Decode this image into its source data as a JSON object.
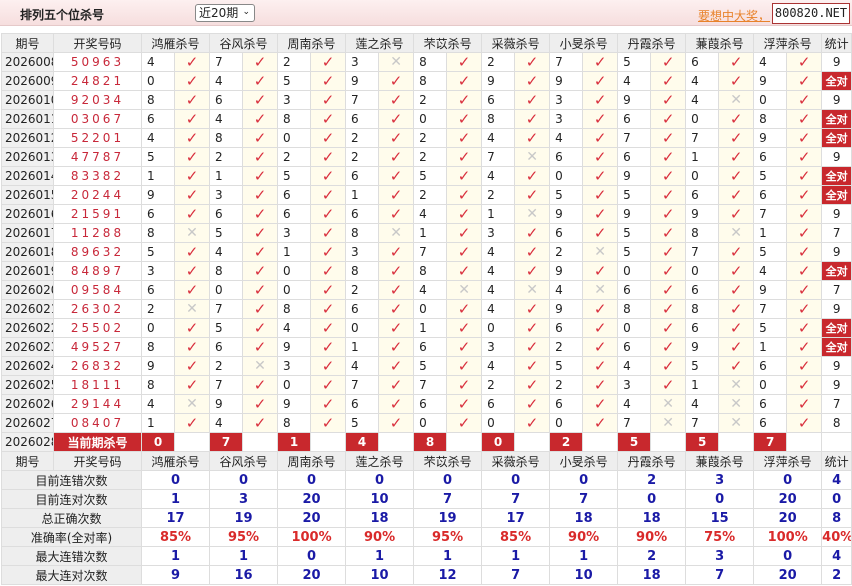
{
  "header": {
    "title": "排列五个位杀号",
    "period_select": "近20期",
    "ad_link": "要想中大奖，",
    "site_box": "800820.NET"
  },
  "colors": {
    "accent_red": "#c8282d",
    "check": "#d9303e",
    "cross": "#c8c8c8",
    "stat_blue": "#1a1aa6"
  },
  "columns": {
    "issue": "期号",
    "draw": "开奖号码",
    "experts": [
      "鸿雁杀号",
      "谷风杀号",
      "周南杀号",
      "莲之杀号",
      "芣苡杀号",
      "采薇杀号",
      "小旻杀号",
      "丹霞杀号",
      "蒹葭杀号",
      "浮萍杀号"
    ],
    "stat": "统计"
  },
  "full_label": "全对",
  "rows": [
    {
      "issue": "2026008",
      "draw": "50963",
      "picks": [
        [
          4,
          true
        ],
        [
          7,
          true
        ],
        [
          2,
          true
        ],
        [
          3,
          false
        ],
        [
          8,
          true
        ],
        [
          2,
          true
        ],
        [
          7,
          true
        ],
        [
          5,
          true
        ],
        [
          6,
          true
        ],
        [
          4,
          true
        ]
      ],
      "stat": "9"
    },
    {
      "issue": "2026009",
      "draw": "24821",
      "picks": [
        [
          0,
          true
        ],
        [
          4,
          true
        ],
        [
          5,
          true
        ],
        [
          9,
          true
        ],
        [
          8,
          true
        ],
        [
          9,
          true
        ],
        [
          9,
          true
        ],
        [
          4,
          true
        ],
        [
          4,
          true
        ],
        [
          9,
          true
        ]
      ],
      "stat": "全对"
    },
    {
      "issue": "2026010",
      "draw": "92034",
      "picks": [
        [
          8,
          true
        ],
        [
          6,
          true
        ],
        [
          3,
          true
        ],
        [
          7,
          true
        ],
        [
          2,
          true
        ],
        [
          6,
          true
        ],
        [
          3,
          true
        ],
        [
          9,
          true
        ],
        [
          4,
          false
        ],
        [
          0,
          true
        ]
      ],
      "stat": "9"
    },
    {
      "issue": "2026011",
      "draw": "03067",
      "picks": [
        [
          6,
          true
        ],
        [
          4,
          true
        ],
        [
          8,
          true
        ],
        [
          6,
          true
        ],
        [
          0,
          true
        ],
        [
          8,
          true
        ],
        [
          3,
          true
        ],
        [
          6,
          true
        ],
        [
          0,
          true
        ],
        [
          8,
          true
        ]
      ],
      "stat": "全对"
    },
    {
      "issue": "2026012",
      "draw": "52201",
      "picks": [
        [
          4,
          true
        ],
        [
          8,
          true
        ],
        [
          0,
          true
        ],
        [
          2,
          true
        ],
        [
          2,
          true
        ],
        [
          4,
          true
        ],
        [
          4,
          true
        ],
        [
          7,
          true
        ],
        [
          7,
          true
        ],
        [
          9,
          true
        ]
      ],
      "stat": "全对"
    },
    {
      "issue": "2026013",
      "draw": "47787",
      "picks": [
        [
          5,
          true
        ],
        [
          2,
          true
        ],
        [
          2,
          true
        ],
        [
          2,
          true
        ],
        [
          2,
          true
        ],
        [
          7,
          false
        ],
        [
          6,
          true
        ],
        [
          6,
          true
        ],
        [
          1,
          true
        ],
        [
          6,
          true
        ]
      ],
      "stat": "9"
    },
    {
      "issue": "2026014",
      "draw": "83382",
      "picks": [
        [
          1,
          true
        ],
        [
          1,
          true
        ],
        [
          5,
          true
        ],
        [
          6,
          true
        ],
        [
          5,
          true
        ],
        [
          4,
          true
        ],
        [
          0,
          true
        ],
        [
          9,
          true
        ],
        [
          0,
          true
        ],
        [
          5,
          true
        ]
      ],
      "stat": "全对"
    },
    {
      "issue": "2026015",
      "draw": "20244",
      "picks": [
        [
          9,
          true
        ],
        [
          3,
          true
        ],
        [
          6,
          true
        ],
        [
          1,
          true
        ],
        [
          2,
          true
        ],
        [
          2,
          true
        ],
        [
          5,
          true
        ],
        [
          5,
          true
        ],
        [
          6,
          true
        ],
        [
          6,
          true
        ]
      ],
      "stat": "全对"
    },
    {
      "issue": "2026016",
      "draw": "21591",
      "picks": [
        [
          6,
          true
        ],
        [
          6,
          true
        ],
        [
          6,
          true
        ],
        [
          6,
          true
        ],
        [
          4,
          true
        ],
        [
          1,
          false
        ],
        [
          9,
          true
        ],
        [
          9,
          true
        ],
        [
          9,
          true
        ],
        [
          7,
          true
        ]
      ],
      "stat": "9"
    },
    {
      "issue": "2026017",
      "draw": "11288",
      "picks": [
        [
          8,
          false
        ],
        [
          5,
          true
        ],
        [
          3,
          true
        ],
        [
          8,
          false
        ],
        [
          1,
          true
        ],
        [
          3,
          true
        ],
        [
          6,
          true
        ],
        [
          5,
          true
        ],
        [
          8,
          false
        ],
        [
          1,
          true
        ]
      ],
      "stat": "7"
    },
    {
      "issue": "2026018",
      "draw": "89632",
      "picks": [
        [
          5,
          true
        ],
        [
          4,
          true
        ],
        [
          1,
          true
        ],
        [
          3,
          true
        ],
        [
          7,
          true
        ],
        [
          4,
          true
        ],
        [
          2,
          false
        ],
        [
          5,
          true
        ],
        [
          7,
          true
        ],
        [
          5,
          true
        ]
      ],
      "stat": "9"
    },
    {
      "issue": "2026019",
      "draw": "84897",
      "picks": [
        [
          3,
          true
        ],
        [
          8,
          true
        ],
        [
          0,
          true
        ],
        [
          8,
          true
        ],
        [
          8,
          true
        ],
        [
          4,
          true
        ],
        [
          9,
          true
        ],
        [
          0,
          true
        ],
        [
          0,
          true
        ],
        [
          4,
          true
        ]
      ],
      "stat": "全对"
    },
    {
      "issue": "2026020",
      "draw": "09584",
      "picks": [
        [
          6,
          true
        ],
        [
          0,
          true
        ],
        [
          0,
          true
        ],
        [
          2,
          true
        ],
        [
          4,
          false
        ],
        [
          4,
          false
        ],
        [
          4,
          false
        ],
        [
          6,
          true
        ],
        [
          6,
          true
        ],
        [
          9,
          true
        ]
      ],
      "stat": "7"
    },
    {
      "issue": "2026021",
      "draw": "26302",
      "picks": [
        [
          2,
          false
        ],
        [
          7,
          true
        ],
        [
          8,
          true
        ],
        [
          6,
          true
        ],
        [
          0,
          true
        ],
        [
          4,
          true
        ],
        [
          9,
          true
        ],
        [
          8,
          true
        ],
        [
          8,
          true
        ],
        [
          7,
          true
        ]
      ],
      "stat": "9"
    },
    {
      "issue": "2026022",
      "draw": "25502",
      "picks": [
        [
          0,
          true
        ],
        [
          5,
          true
        ],
        [
          4,
          true
        ],
        [
          0,
          true
        ],
        [
          1,
          true
        ],
        [
          0,
          true
        ],
        [
          6,
          true
        ],
        [
          0,
          true
        ],
        [
          6,
          true
        ],
        [
          5,
          true
        ]
      ],
      "stat": "全对"
    },
    {
      "issue": "2026023",
      "draw": "49527",
      "picks": [
        [
          8,
          true
        ],
        [
          6,
          true
        ],
        [
          9,
          true
        ],
        [
          1,
          true
        ],
        [
          6,
          true
        ],
        [
          3,
          true
        ],
        [
          2,
          true
        ],
        [
          6,
          true
        ],
        [
          9,
          true
        ],
        [
          1,
          true
        ]
      ],
      "stat": "全对"
    },
    {
      "issue": "2026024",
      "draw": "26832",
      "picks": [
        [
          9,
          true
        ],
        [
          2,
          false
        ],
        [
          3,
          true
        ],
        [
          4,
          true
        ],
        [
          5,
          true
        ],
        [
          4,
          true
        ],
        [
          5,
          true
        ],
        [
          4,
          true
        ],
        [
          5,
          true
        ],
        [
          6,
          true
        ]
      ],
      "stat": "9"
    },
    {
      "issue": "2026025",
      "draw": "18111",
      "picks": [
        [
          8,
          true
        ],
        [
          7,
          true
        ],
        [
          0,
          true
        ],
        [
          7,
          true
        ],
        [
          7,
          true
        ],
        [
          2,
          true
        ],
        [
          2,
          true
        ],
        [
          3,
          true
        ],
        [
          1,
          false
        ],
        [
          0,
          true
        ]
      ],
      "stat": "9"
    },
    {
      "issue": "2026026",
      "draw": "29144",
      "picks": [
        [
          4,
          false
        ],
        [
          9,
          true
        ],
        [
          9,
          true
        ],
        [
          6,
          true
        ],
        [
          6,
          true
        ],
        [
          6,
          true
        ],
        [
          6,
          true
        ],
        [
          4,
          false
        ],
        [
          4,
          false
        ],
        [
          6,
          true
        ]
      ],
      "stat": "7"
    },
    {
      "issue": "2026027",
      "draw": "08407",
      "picks": [
        [
          1,
          true
        ],
        [
          4,
          true
        ],
        [
          8,
          true
        ],
        [
          5,
          true
        ],
        [
          0,
          true
        ],
        [
          0,
          true
        ],
        [
          0,
          true
        ],
        [
          7,
          false
        ],
        [
          7,
          false
        ],
        [
          6,
          true
        ]
      ],
      "stat": "8"
    }
  ],
  "current": {
    "issue": "2026028",
    "label": "当前期杀号",
    "picks": [
      "0",
      "7",
      "1",
      "4",
      "8",
      "0",
      "2",
      "5",
      "5",
      "7"
    ]
  },
  "stats": [
    {
      "label": "目前连错次数",
      "values": [
        "0",
        "0",
        "0",
        "0",
        "0",
        "0",
        "0",
        "2",
        "3",
        "0",
        "4"
      ]
    },
    {
      "label": "目前连对次数",
      "values": [
        "1",
        "3",
        "20",
        "10",
        "7",
        "7",
        "7",
        "0",
        "0",
        "20",
        "0"
      ]
    },
    {
      "label": "总正确次数",
      "values": [
        "17",
        "19",
        "20",
        "18",
        "19",
        "17",
        "18",
        "18",
        "15",
        "20",
        "8"
      ]
    },
    {
      "label": "准确率(全对率)",
      "values": [
        "85%",
        "95%",
        "100%",
        "90%",
        "95%",
        "85%",
        "90%",
        "90%",
        "75%",
        "100%",
        "40%"
      ],
      "pct": true
    },
    {
      "label": "最大连错次数",
      "values": [
        "1",
        "1",
        "0",
        "1",
        "1",
        "1",
        "1",
        "2",
        "3",
        "0",
        "4"
      ]
    },
    {
      "label": "最大连对次数",
      "values": [
        "9",
        "16",
        "20",
        "10",
        "12",
        "7",
        "10",
        "18",
        "7",
        "20",
        "2"
      ]
    }
  ]
}
